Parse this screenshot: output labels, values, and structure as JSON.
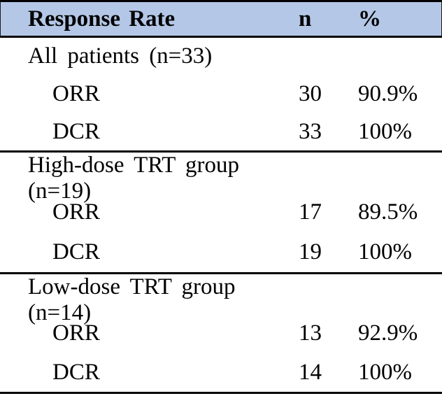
{
  "table": {
    "title_col": "Response Rate",
    "n_col": "n",
    "pct_col": "%",
    "colors": {
      "header_bg": "#b4c7e7",
      "rule": "#000000",
      "text": "#000000"
    },
    "sections": [
      {
        "label": "All patients (n=33)",
        "rows": [
          {
            "name": "ORR",
            "n": "30",
            "pct": "90.9%"
          },
          {
            "name": "DCR",
            "n": "33",
            "pct": "100%"
          }
        ]
      },
      {
        "label": "High-dose TRT group (n=19)",
        "rows": [
          {
            "name": "ORR",
            "n": "17",
            "pct": "89.5%"
          },
          {
            "name": "DCR",
            "n": "19",
            "pct": "100%"
          }
        ]
      },
      {
        "label": "Low-dose TRT group (n=14)",
        "rows": [
          {
            "name": "ORR",
            "n": "13",
            "pct": "92.9%"
          },
          {
            "name": "DCR",
            "n": "14",
            "pct": "100%"
          }
        ]
      }
    ]
  },
  "chart_data": {
    "type": "table",
    "title": "Response Rate",
    "columns": [
      "Response Rate",
      "n",
      "%"
    ],
    "rows": [
      [
        "All patients (n=33)",
        "",
        ""
      ],
      [
        "ORR",
        "30",
        "90.9%"
      ],
      [
        "DCR",
        "33",
        "100%"
      ],
      [
        "High-dose TRT group (n=19)",
        "",
        ""
      ],
      [
        "ORR",
        "17",
        "89.5%"
      ],
      [
        "DCR",
        "19",
        "100%"
      ],
      [
        "Low-dose TRT group (n=14)",
        "",
        ""
      ],
      [
        "ORR",
        "13",
        "92.9%"
      ],
      [
        "DCR",
        "14",
        "100%"
      ]
    ]
  }
}
